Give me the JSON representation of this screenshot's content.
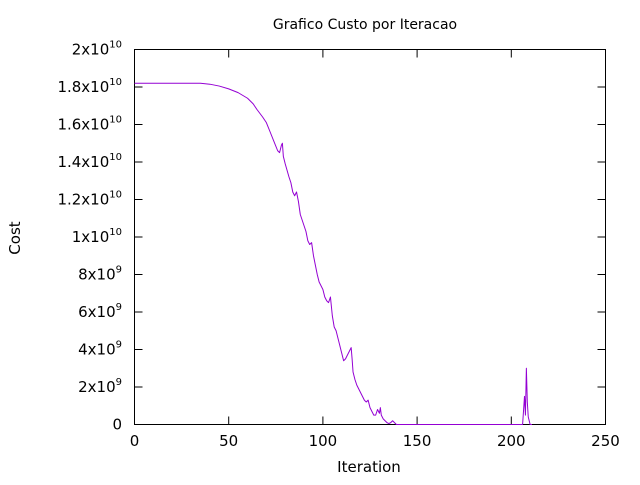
{
  "chart_data": {
    "type": "line",
    "title": "Grafico Custo por Iteracao",
    "xlabel": "Iteration",
    "ylabel": "Cost",
    "xlim": [
      0,
      250
    ],
    "ylim": [
      0,
      20000000000
    ],
    "grid": false,
    "legend": "none",
    "x_ticks": [
      {
        "value": 0,
        "label": "0"
      },
      {
        "value": 50,
        "label": "50"
      },
      {
        "value": 100,
        "label": "100"
      },
      {
        "value": 150,
        "label": "150"
      },
      {
        "value": 200,
        "label": "200"
      },
      {
        "value": 250,
        "label": "250"
      }
    ],
    "y_ticks": [
      {
        "value": 0,
        "mant": "0",
        "exp": ""
      },
      {
        "value": 2000000000,
        "mant": "2x10",
        "exp": "9"
      },
      {
        "value": 4000000000,
        "mant": "4x10",
        "exp": "9"
      },
      {
        "value": 6000000000,
        "mant": "6x10",
        "exp": "9"
      },
      {
        "value": 8000000000,
        "mant": "8x10",
        "exp": "9"
      },
      {
        "value": 10000000000,
        "mant": "1x10",
        "exp": "10"
      },
      {
        "value": 12000000000,
        "mant": "1.2x10",
        "exp": "10"
      },
      {
        "value": 14000000000,
        "mant": "1.4x10",
        "exp": "10"
      },
      {
        "value": 16000000000,
        "mant": "1.6x10",
        "exp": "10"
      },
      {
        "value": 18000000000,
        "mant": "1.8x10",
        "exp": "10"
      },
      {
        "value": 20000000000,
        "mant": "2x10",
        "exp": "10"
      }
    ],
    "series": [
      {
        "color": "#9400d3",
        "points": [
          [
            0,
            18200000000.0
          ],
          [
            35,
            18200000000.0
          ],
          [
            40,
            18150000000.0
          ],
          [
            45,
            18050000000.0
          ],
          [
            50,
            17900000000.0
          ],
          [
            55,
            17700000000.0
          ],
          [
            60,
            17400000000.0
          ],
          [
            63,
            17100000000.0
          ],
          [
            65,
            16800000000.0
          ],
          [
            68,
            16400000000.0
          ],
          [
            70,
            16100000000.0
          ],
          [
            72,
            15600000000.0
          ],
          [
            74,
            15100000000.0
          ],
          [
            76,
            14600000000.0
          ],
          [
            77,
            14500000000.0
          ],
          [
            78,
            14900000000.0
          ],
          [
            78.5,
            15000000000.0
          ],
          [
            79,
            14300000000.0
          ],
          [
            80,
            13900000000.0
          ],
          [
            82,
            13200000000.0
          ],
          [
            83,
            12900000000.0
          ],
          [
            84,
            12400000000.0
          ],
          [
            85,
            12200000000.0
          ],
          [
            86,
            12400000000.0
          ],
          [
            87,
            11900000000.0
          ],
          [
            88,
            11200000000.0
          ],
          [
            89,
            10900000000.0
          ],
          [
            90,
            10600000000.0
          ],
          [
            91,
            10300000000.0
          ],
          [
            92,
            9800000000.0
          ],
          [
            93,
            9600000000.0
          ],
          [
            94,
            9700000000.0
          ],
          [
            95,
            9000000000.0
          ],
          [
            96,
            8500000000.0
          ],
          [
            97,
            8000000000.0
          ],
          [
            98,
            7600000000.0
          ],
          [
            99,
            7400000000.0
          ],
          [
            100,
            7200000000.0
          ],
          [
            101,
            6800000000.0
          ],
          [
            102,
            6600000000.0
          ],
          [
            103,
            6500000000.0
          ],
          [
            104,
            6800000000.0
          ],
          [
            104.5,
            6300000000.0
          ],
          [
            105,
            5800000000.0
          ],
          [
            106,
            5200000000.0
          ],
          [
            107,
            5000000000.0
          ],
          [
            108,
            4600000000.0
          ],
          [
            109,
            4200000000.0
          ],
          [
            110,
            3800000000.0
          ],
          [
            111,
            3400000000.0
          ],
          [
            112,
            3500000000.0
          ],
          [
            113,
            3700000000.0
          ],
          [
            114,
            3900000000.0
          ],
          [
            115,
            4100000000.0
          ],
          [
            115.5,
            3500000000.0
          ],
          [
            116,
            2800000000.0
          ],
          [
            117,
            2400000000.0
          ],
          [
            118,
            2100000000.0
          ],
          [
            119,
            1900000000.0
          ],
          [
            120,
            1700000000.0
          ],
          [
            121,
            1500000000.0
          ],
          [
            122,
            1300000000.0
          ],
          [
            123,
            1200000000.0
          ],
          [
            124,
            1300000000.0
          ],
          [
            125,
            900000000.0
          ],
          [
            126,
            700000000.0
          ],
          [
            127,
            500000000.0
          ],
          [
            128,
            500000000.0
          ],
          [
            129,
            800000000.0
          ],
          [
            130,
            600000000.0
          ],
          [
            130.5,
            900000000.0
          ],
          [
            131,
            500000000.0
          ],
          [
            132,
            300000000.0
          ],
          [
            133,
            200000000.0
          ],
          [
            134,
            100000000.0
          ],
          [
            135,
            50000000.0
          ],
          [
            136,
            100000000.0
          ],
          [
            137,
            200000000.0
          ],
          [
            138,
            100000000.0
          ],
          [
            139,
            0.0
          ],
          [
            150,
            0.0
          ],
          [
            200,
            0.0
          ],
          [
            206,
            0.0
          ],
          [
            207,
            1500000000.0
          ],
          [
            207.5,
            500000000.0
          ],
          [
            208,
            3000000000.0
          ],
          [
            208.5,
            1200000000.0
          ],
          [
            209,
            400000000.0
          ],
          [
            210,
            0.0
          ],
          [
            211,
            0.0
          ]
        ]
      }
    ]
  }
}
